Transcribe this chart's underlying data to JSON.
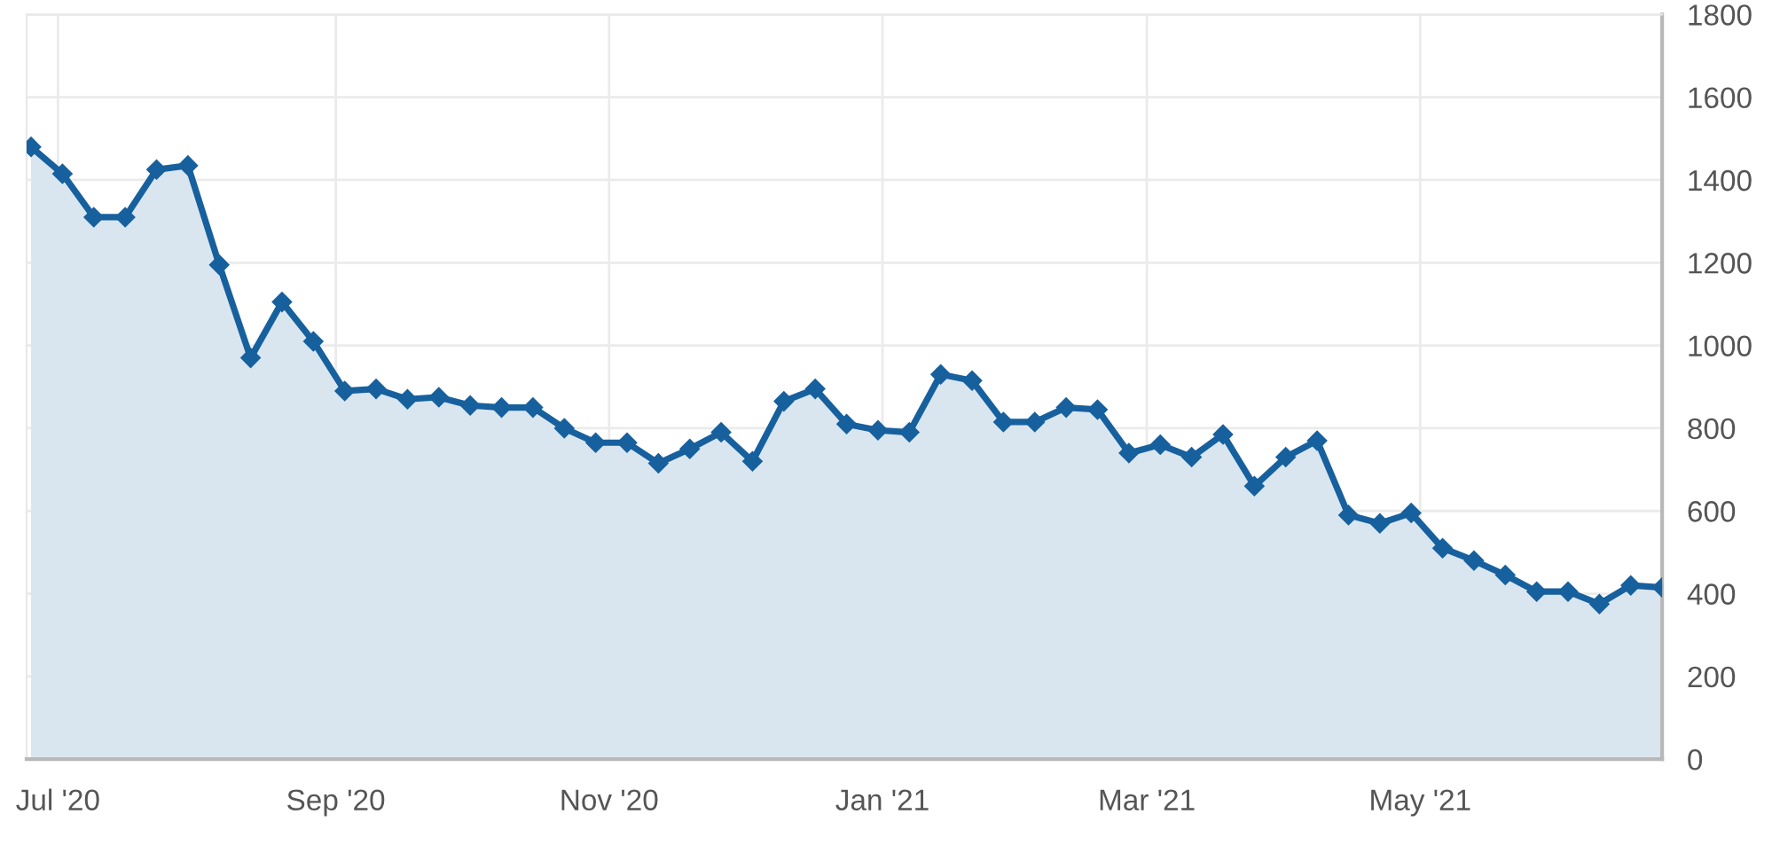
{
  "chart_data": {
    "type": "area",
    "x": [
      "2020-06-25",
      "2020-07-02",
      "2020-07-09",
      "2020-07-16",
      "2020-07-23",
      "2020-07-30",
      "2020-08-06",
      "2020-08-13",
      "2020-08-20",
      "2020-08-27",
      "2020-09-03",
      "2020-09-10",
      "2020-09-17",
      "2020-09-24",
      "2020-10-01",
      "2020-10-08",
      "2020-10-15",
      "2020-10-22",
      "2020-10-29",
      "2020-11-05",
      "2020-11-12",
      "2020-11-19",
      "2020-11-26",
      "2020-12-03",
      "2020-12-10",
      "2020-12-17",
      "2020-12-24",
      "2020-12-31",
      "2021-01-07",
      "2021-01-14",
      "2021-01-21",
      "2021-01-28",
      "2021-02-04",
      "2021-02-11",
      "2021-02-18",
      "2021-02-25",
      "2021-03-04",
      "2021-03-11",
      "2021-03-18",
      "2021-03-25",
      "2021-04-01",
      "2021-04-08",
      "2021-04-15",
      "2021-04-22",
      "2021-04-29",
      "2021-05-06",
      "2021-05-13",
      "2021-05-20",
      "2021-05-27",
      "2021-06-03",
      "2021-06-10",
      "2021-06-17",
      "2021-06-24"
    ],
    "series": [
      {
        "color": "#17609e",
        "values": [
          1480,
          1415,
          1310,
          1310,
          1425,
          1435,
          1195,
          970,
          1105,
          1010,
          890,
          895,
          870,
          875,
          855,
          850,
          850,
          800,
          765,
          765,
          715,
          750,
          790,
          720,
          865,
          895,
          810,
          795,
          790,
          930,
          915,
          815,
          815,
          850,
          845,
          740,
          760,
          730,
          785,
          660,
          730,
          770,
          590,
          570,
          595,
          510,
          480,
          445,
          405,
          405,
          375,
          420,
          415
        ]
      }
    ],
    "xlim": [
      "2020-06-24",
      "2021-06-24"
    ],
    "xticks": [
      {
        "value": "2020-07-01",
        "label": "Jul '20"
      },
      {
        "value": "2020-09-01",
        "label": "Sep '20"
      },
      {
        "value": "2020-11-01",
        "label": "Nov '20"
      },
      {
        "value": "2021-01-01",
        "label": "Jan '21"
      },
      {
        "value": "2021-03-01",
        "label": "Mar '21"
      },
      {
        "value": "2021-05-01",
        "label": "May '21"
      }
    ],
    "ylim": [
      0,
      1800
    ],
    "yticks": [
      0,
      200,
      400,
      600,
      800,
      1000,
      1200,
      1400,
      1600,
      1800
    ],
    "grid": true,
    "marker": "diamond",
    "line_style": "solid"
  }
}
